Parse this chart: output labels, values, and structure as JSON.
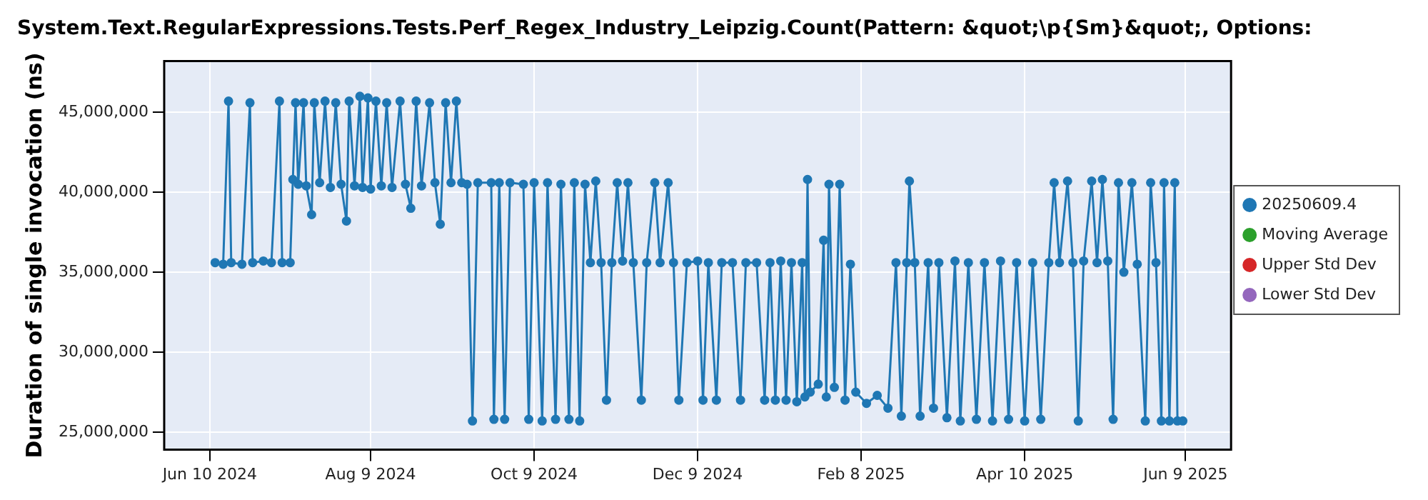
{
  "chart_data": {
    "type": "line",
    "title": "System.Text.RegularExpressions.Tests.Perf_Regex_Industry_Leipzig.Count(Pattern: &quot;\\p{Sm}&quot;, Options:",
    "ylabel": "Duration of single invocation (ns)",
    "xlim": [
      "2024-05-24",
      "2025-06-26"
    ],
    "xticks": [
      {
        "value": "2024-06-10",
        "label": "Jun 10 2024"
      },
      {
        "value": "2024-08-09",
        "label": "Aug 9 2024"
      },
      {
        "value": "2024-10-09",
        "label": "Oct 9 2024"
      },
      {
        "value": "2024-12-09",
        "label": "Dec 9 2024"
      },
      {
        "value": "2025-02-08",
        "label": "Feb 8 2025"
      },
      {
        "value": "2025-04-10",
        "label": "Apr 10 2025"
      },
      {
        "value": "2025-06-09",
        "label": "Jun 9 2025"
      }
    ],
    "ylim": [
      23900000,
      48200000
    ],
    "yticks": [
      {
        "value": 25000000,
        "label": "25,000,000"
      },
      {
        "value": 30000000,
        "label": "30,000,000"
      },
      {
        "value": 35000000,
        "label": "35,000,000"
      },
      {
        "value": 40000000,
        "label": "40,000,000"
      },
      {
        "value": 45000000,
        "label": "45,000,000"
      }
    ],
    "grid": true,
    "legend": "right",
    "marker": "circle",
    "line_style": "solid",
    "series": [
      {
        "name": "20250609.4",
        "color": "#1f77b4",
        "x": [
          "2024-06-12",
          "2024-06-15",
          "2024-06-17",
          "2024-06-18",
          "2024-06-22",
          "2024-06-25",
          "2024-06-26",
          "2024-06-30",
          "2024-07-03",
          "2024-07-06",
          "2024-07-07",
          "2024-07-10",
          "2024-07-11",
          "2024-07-12",
          "2024-07-13",
          "2024-07-15",
          "2024-07-16",
          "2024-07-18",
          "2024-07-19",
          "2024-07-21",
          "2024-07-23",
          "2024-07-25",
          "2024-07-27",
          "2024-07-29",
          "2024-07-31",
          "2024-08-01",
          "2024-08-03",
          "2024-08-05",
          "2024-08-06",
          "2024-08-08",
          "2024-08-09",
          "2024-08-11",
          "2024-08-13",
          "2024-08-15",
          "2024-08-17",
          "2024-08-20",
          "2024-08-22",
          "2024-08-24",
          "2024-08-26",
          "2024-08-28",
          "2024-08-31",
          "2024-09-02",
          "2024-09-04",
          "2024-09-06",
          "2024-09-08",
          "2024-09-10",
          "2024-09-12",
          "2024-09-14",
          "2024-09-16",
          "2024-09-18",
          "2024-09-23",
          "2024-09-24",
          "2024-09-26",
          "2024-09-28",
          "2024-09-30",
          "2024-10-05",
          "2024-10-07",
          "2024-10-09",
          "2024-10-12",
          "2024-10-14",
          "2024-10-17",
          "2024-10-19",
          "2024-10-22",
          "2024-10-24",
          "2024-10-26",
          "2024-10-28",
          "2024-10-30",
          "2024-11-01",
          "2024-11-03",
          "2024-11-05",
          "2024-11-07",
          "2024-11-09",
          "2024-11-11",
          "2024-11-13",
          "2024-11-15",
          "2024-11-18",
          "2024-11-20",
          "2024-11-23",
          "2024-11-25",
          "2024-11-28",
          "2024-11-30",
          "2024-12-02",
          "2024-12-05",
          "2024-12-09",
          "2024-12-11",
          "2024-12-13",
          "2024-12-16",
          "2024-12-18",
          "2024-12-22",
          "2024-12-25",
          "2024-12-27",
          "2024-12-31",
          "2025-01-03",
          "2025-01-05",
          "2025-01-07",
          "2025-01-09",
          "2025-01-11",
          "2025-01-13",
          "2025-01-15",
          "2025-01-17",
          "2025-01-18",
          "2025-01-19",
          "2025-01-20",
          "2025-01-23",
          "2025-01-25",
          "2025-01-26",
          "2025-01-27",
          "2025-01-29",
          "2025-01-31",
          "2025-02-02",
          "2025-02-04",
          "2025-02-06",
          "2025-02-10",
          "2025-02-14",
          "2025-02-18",
          "2025-02-21",
          "2025-02-23",
          "2025-02-25",
          "2025-02-26",
          "2025-02-28",
          "2025-03-02",
          "2025-03-05",
          "2025-03-07",
          "2025-03-09",
          "2025-03-12",
          "2025-03-15",
          "2025-03-17",
          "2025-03-20",
          "2025-03-23",
          "2025-03-26",
          "2025-03-29",
          "2025-04-01",
          "2025-04-04",
          "2025-04-07",
          "2025-04-10",
          "2025-04-13",
          "2025-04-16",
          "2025-04-19",
          "2025-04-21",
          "2025-04-23",
          "2025-04-26",
          "2025-04-28",
          "2025-04-30",
          "2025-05-02",
          "2025-05-05",
          "2025-05-07",
          "2025-05-09",
          "2025-05-11",
          "2025-05-13",
          "2025-05-15",
          "2025-05-17",
          "2025-05-20",
          "2025-05-22",
          "2025-05-25",
          "2025-05-27",
          "2025-05-29",
          "2025-05-31",
          "2025-06-01",
          "2025-06-03",
          "2025-06-05",
          "2025-06-06",
          "2025-06-08"
        ],
        "values": [
          35600000,
          35500000,
          45700000,
          35600000,
          35500000,
          45600000,
          35600000,
          35700000,
          35600000,
          45700000,
          35600000,
          35600000,
          40800000,
          45600000,
          40500000,
          45600000,
          40400000,
          38600000,
          45600000,
          40600000,
          45700000,
          40300000,
          45600000,
          40500000,
          38200000,
          45700000,
          40400000,
          46000000,
          40300000,
          45900000,
          40200000,
          45700000,
          40400000,
          45600000,
          40300000,
          45700000,
          40500000,
          39000000,
          45700000,
          40400000,
          45600000,
          40600000,
          38000000,
          45600000,
          40600000,
          45700000,
          40600000,
          40500000,
          25700000,
          40600000,
          40600000,
          25800000,
          40600000,
          25800000,
          40600000,
          40500000,
          25800000,
          40600000,
          25700000,
          40600000,
          25800000,
          40500000,
          25800000,
          40600000,
          25700000,
          40500000,
          35600000,
          40700000,
          35600000,
          27000000,
          35600000,
          40600000,
          35700000,
          40600000,
          35600000,
          27000000,
          35600000,
          40600000,
          35600000,
          40600000,
          35600000,
          27000000,
          35600000,
          35700000,
          27000000,
          35600000,
          27000000,
          35600000,
          35600000,
          27000000,
          35600000,
          35600000,
          27000000,
          35600000,
          27000000,
          35700000,
          27000000,
          35600000,
          26900000,
          35600000,
          27200000,
          40800000,
          27500000,
          28000000,
          37000000,
          27200000,
          40500000,
          27800000,
          40500000,
          27000000,
          35500000,
          27500000,
          26800000,
          27300000,
          26500000,
          35600000,
          26000000,
          35600000,
          40700000,
          35600000,
          26000000,
          35600000,
          26500000,
          35600000,
          25900000,
          35700000,
          25700000,
          35600000,
          25800000,
          35600000,
          25700000,
          35700000,
          25800000,
          35600000,
          25700000,
          35600000,
          25800000,
          35600000,
          40600000,
          35600000,
          40700000,
          35600000,
          25700000,
          35700000,
          40700000,
          35600000,
          40800000,
          35700000,
          25800000,
          40600000,
          35000000,
          40600000,
          35500000,
          25700000,
          40600000,
          35600000,
          25700000,
          40600000,
          25700000,
          40600000,
          25700000,
          25700000
        ]
      },
      {
        "name": "Moving Average",
        "color": "#2ca02c"
      },
      {
        "name": "Upper Std Dev",
        "color": "#d62728"
      },
      {
        "name": "Lower Std Dev",
        "color": "#9467bd"
      }
    ]
  }
}
